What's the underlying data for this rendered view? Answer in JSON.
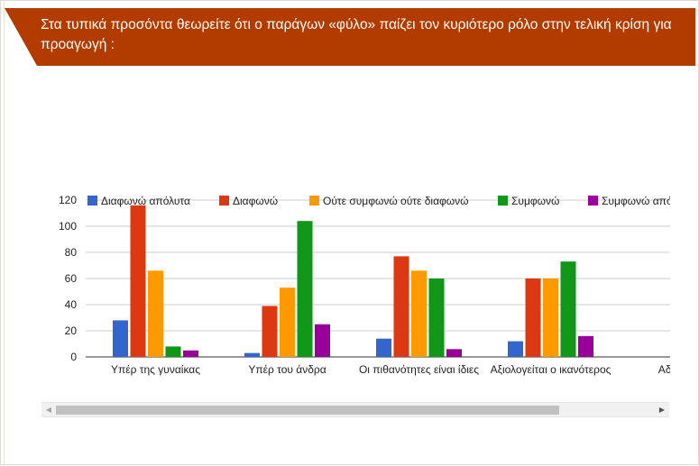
{
  "question": {
    "title": "Στα τυπικά προσόντα θεωρείτε ότι ο παράγων «φύλο» παίζει τον κυριότερο ρόλο στην τελική κρίση για προαγωγή :"
  },
  "scrollbar": {
    "left_arrow": "◀",
    "right_arrow": "▶"
  },
  "chart_data": {
    "type": "bar",
    "title": "",
    "xlabel": "",
    "ylabel": "",
    "ylim": [
      0,
      120
    ],
    "yticks": [
      0,
      20,
      40,
      60,
      80,
      100,
      120
    ],
    "grid": true,
    "legend_position": "top",
    "categories": [
      "Υπέρ της γυναίκας",
      "Υπέρ του άνδρα",
      "Οι πιθανότητες είναι ίδιες",
      "Αξιολογείται ο ικανότερος",
      "Αδιαφέρω"
    ],
    "series": [
      {
        "name": "Διαφωνώ απόλυτα",
        "color": "#3366cc",
        "values": [
          28,
          3,
          14,
          12,
          0
        ]
      },
      {
        "name": "Διαφωνώ",
        "color": "#dc3912",
        "values": [
          116,
          39,
          77,
          60,
          0
        ]
      },
      {
        "name": "Ούτε συμφωνώ ούτε διαφωνώ",
        "color": "#ff9900",
        "values": [
          66,
          53,
          66,
          60,
          0
        ]
      },
      {
        "name": "Συμφωνώ",
        "color": "#109618",
        "values": [
          8,
          104,
          60,
          73,
          0
        ]
      },
      {
        "name": "Συμφωνώ απόλυτα",
        "color": "#990099",
        "values": [
          5,
          25,
          6,
          16,
          0
        ]
      }
    ]
  }
}
